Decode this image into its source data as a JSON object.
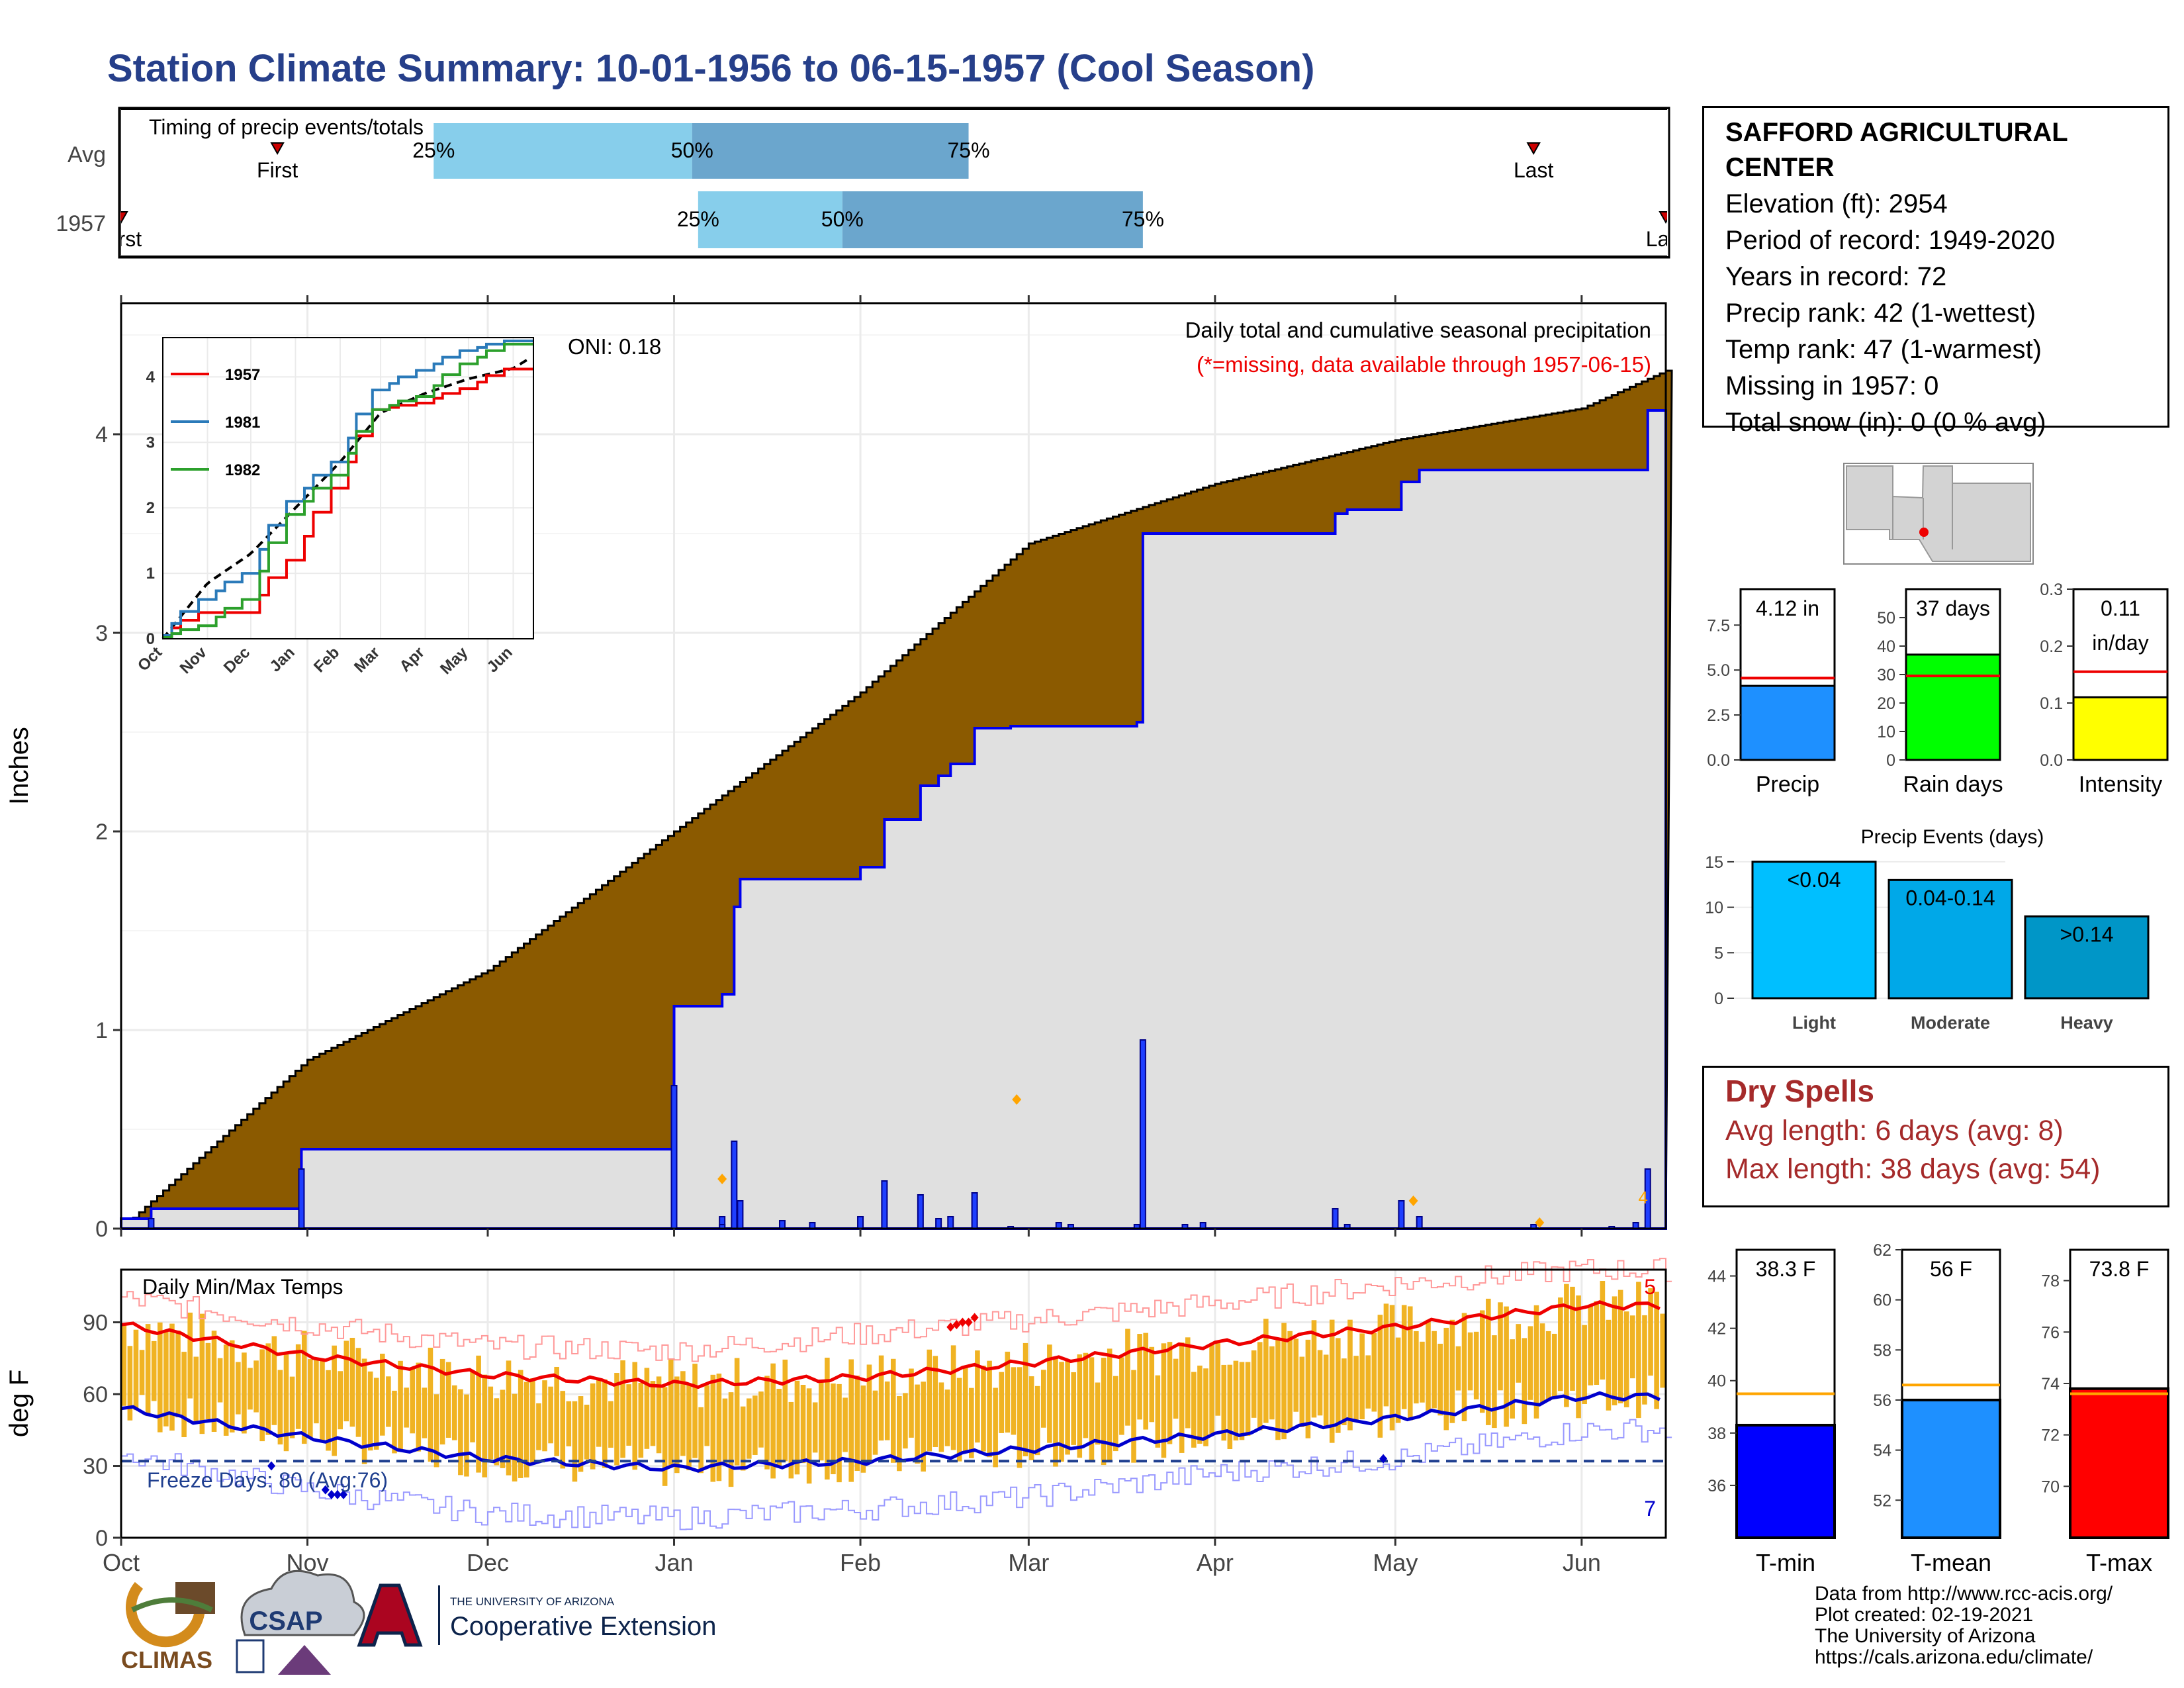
{
  "title": "Station Climate Summary: 10-01-1956 to 06-15-1957 (Cool Season)",
  "colors": {
    "title": "#263f8a",
    "precip_fill": "#8b5a00",
    "obs_fill": "#e0e0e0",
    "obs_line": "#0000ee",
    "temp_bar": "#f0b323",
    "tmax_line": "#ee0000",
    "tmin_line": "#0000cc"
  },
  "timing": {
    "label": "Timing of precip events/totals",
    "rows": [
      {
        "name": "Avg",
        "first_label": "First",
        "last_label": "Last",
        "first_day": 26,
        "last_day": 235,
        "p25_day": 52,
        "p50_day": 95,
        "p75_day": 141,
        "labels": [
          "25%",
          "50%",
          "75%"
        ]
      },
      {
        "name": "1957",
        "first_label": "First",
        "last_label": "Last",
        "first_day": 0,
        "last_day": 257,
        "p25_day": 96,
        "p50_day": 120,
        "p75_day": 170,
        "labels": [
          "25%",
          "50%",
          "75%"
        ]
      }
    ]
  },
  "main": {
    "ylabel": "Inches",
    "y_ticks": [
      "0",
      "1",
      "2",
      "3",
      "4"
    ],
    "x_ticks": [
      "Oct",
      "Nov",
      "Dec",
      "Jan",
      "Feb",
      "Mar",
      "Apr",
      "May",
      "Jun"
    ],
    "oni": "ONI: 0.18",
    "caption1": "Daily total and cumulative seasonal precipitation",
    "caption2": "(*=missing, data available through 1957-06-15)",
    "corner_marker": "4"
  },
  "inset": {
    "x_ticks": [
      "Oct",
      "Nov",
      "Dec",
      "Jan",
      "Feb",
      "Mar",
      "Apr",
      "May",
      "Jun"
    ],
    "y_ticks": [
      "0",
      "1",
      "2",
      "3",
      "4"
    ],
    "legend": [
      {
        "name": "1957",
        "color": "#ee0000"
      },
      {
        "name": "1981",
        "color": "#2a7ab9"
      },
      {
        "name": "1982",
        "color": "#2ca02c"
      }
    ]
  },
  "temps": {
    "label": "Daily Min/Max Temps",
    "ylabel": "deg F",
    "y_ticks": [
      "0",
      "30",
      "60",
      "90"
    ],
    "x_ticks": [
      "Oct",
      "Nov",
      "Dec",
      "Jan",
      "Feb",
      "Mar",
      "Apr",
      "May",
      "Jun"
    ],
    "freeze_text": "Freeze Days: 80 (Avg:76)",
    "top_count": "5",
    "bottom_count": "7"
  },
  "station": {
    "name_line1": "SAFFORD AGRICULTURAL",
    "name_line2": "CENTER",
    "lines": [
      "Elevation (ft): 2954",
      "Period of record: 1949-2020",
      "Years in record: 72",
      "Precip rank: 42 (1-wettest)",
      "Temp rank: 47 (1-warmest)",
      "Missing in 1957: 0",
      "Total snow (in): 0 (0 % avg)"
    ]
  },
  "mini_bars": {
    "precip": {
      "label": "Precip",
      "value_label": "4.12 in",
      "value": 4.12,
      "avg": 4.55,
      "ymax": 9.5,
      "ticks": [
        "0.0",
        "2.5",
        "5.0",
        "7.5"
      ],
      "color": "#1e90ff"
    },
    "rain_days": {
      "label": "Rain days",
      "value_label": "37 days",
      "value": 37,
      "avg": 29.5,
      "ymax": 60,
      "ticks": [
        "0",
        "10",
        "20",
        "30",
        "40",
        "50"
      ],
      "color": "#00ff00"
    },
    "intensity": {
      "label": "Intensity",
      "value_label": "0.11",
      "value_label2": "in/day",
      "value": 0.11,
      "avg": 0.155,
      "ymax": 0.3,
      "ticks": [
        "0.0",
        "0.1",
        "0.2",
        "0.3"
      ],
      "color": "#ffff00"
    }
  },
  "precip_events": {
    "title": "Precip Events (days)",
    "ticks": [
      "0",
      "5",
      "10",
      "15"
    ],
    "bars": [
      {
        "category": "Light",
        "label": "<0.04",
        "value": 15,
        "color": "#00bfff"
      },
      {
        "category": "Moderate",
        "label": "0.04-0.14",
        "value": 13,
        "color": "#00a8e8"
      },
      {
        "category": "Heavy",
        "label": ">0.14",
        "value": 9,
        "color": "#0096c7"
      }
    ]
  },
  "dry_spells": {
    "title": "Dry Spells",
    "avg_line": "Avg length: 6 days (avg: 8)",
    "max_line": "Max length: 38 days (avg: 54)"
  },
  "temp_bars": {
    "tmin": {
      "label": "T-min",
      "value_label": "38.3 F",
      "value": 38.3,
      "avg": 39.5,
      "ymin": 34,
      "ymax": 45,
      "ticks": [
        "36",
        "38",
        "40",
        "42",
        "44"
      ],
      "color": "#0000ff"
    },
    "tmean": {
      "label": "T-mean",
      "value_label": "56 F",
      "value": 56,
      "avg": 56.6,
      "ymin": 50.5,
      "ymax": 62,
      "ticks": [
        "52",
        "54",
        "56",
        "58",
        "60",
        "62"
      ],
      "color": "#1e90ff"
    },
    "tmax": {
      "label": "T-max",
      "value_label": "73.8 F",
      "value": 73.8,
      "avg": 73.6,
      "ymin": 68,
      "ymax": 79.2,
      "ticks": [
        "70",
        "72",
        "74",
        "76",
        "78"
      ],
      "color": "#ff0000"
    }
  },
  "credits": [
    "Data from http://www.rcc-acis.org/",
    "Plot created: 02-19-2021",
    "The University of Arizona",
    "https://cals.arizona.edu/climate/"
  ],
  "logos": {
    "climas": "CLIMAS",
    "csap": "CSAP",
    "ua_small": "THE UNIVERSITY OF ARIZONA",
    "coop": "Cooperative Extension"
  },
  "chart_data": [
    {
      "type": "area",
      "title": "Daily total and cumulative seasonal precipitation",
      "ylabel": "Inches",
      "ylim": [
        0,
        4.65
      ],
      "x_range": [
        "1956-10-01",
        "1957-06-15"
      ],
      "series": [
        {
          "name": "Avg",
          "x": [
            "1956-10-01",
            "1956-11-01",
            "1956-12-01",
            "1957-01-01",
            "1957-02-01",
            "1957-03-01",
            "1957-04-01",
            "1957-05-01",
            "1957-06-01",
            "1957-06-15"
          ],
          "values": [
            0,
            0.85,
            1.3,
            2.0,
            2.7,
            3.45,
            3.75,
            3.97,
            4.13,
            4.32
          ]
        },
        {
          "name": "1957",
          "x": [
            "1956-10-01",
            "1956-10-06",
            "1956-10-30",
            "1956-10-31",
            "1956-12-31",
            "1957-01-01",
            "1957-01-09",
            "1957-01-11",
            "1957-01-12",
            "1957-02-01",
            "1957-02-05",
            "1957-02-11",
            "1957-02-14",
            "1957-02-16",
            "1957-02-20",
            "1957-02-26",
            "1957-03-19",
            "1957-03-20",
            "1957-04-21",
            "1957-04-23",
            "1957-05-02",
            "1957-05-05",
            "1957-06-12",
            "1957-06-15"
          ],
          "values": [
            0.05,
            0.1,
            0.1,
            0.4,
            0.4,
            1.12,
            1.18,
            1.62,
            1.76,
            1.82,
            2.06,
            2.23,
            2.28,
            2.34,
            2.52,
            2.53,
            2.55,
            3.5,
            3.6,
            3.62,
            3.76,
            3.82,
            4.12,
            4.12
          ]
        }
      ]
    },
    {
      "type": "line",
      "title": "",
      "xlim": [
        "Oct",
        "Jun"
      ],
      "ylim": [
        0,
        4.6
      ],
      "legend": "top-left",
      "series": [
        {
          "name": "1957",
          "x": [
            "Oct",
            "Nov",
            "Dec",
            "Jan",
            "Feb",
            "Mar",
            "Apr",
            "May",
            "Jun"
          ],
          "values": [
            0.05,
            0.4,
            0.4,
            1.2,
            2.3,
            3.5,
            3.6,
            3.82,
            4.12
          ]
        },
        {
          "name": "1981",
          "x": [
            "Oct",
            "Nov",
            "Dec",
            "Jan",
            "Feb",
            "Mar",
            "Apr",
            "May",
            "Jun"
          ],
          "values": [
            0.05,
            0.6,
            1.0,
            2.1,
            2.7,
            3.8,
            4.1,
            4.4,
            4.55
          ]
        },
        {
          "name": "1982",
          "x": [
            "Oct",
            "Nov",
            "Dec",
            "Jan",
            "Feb",
            "Mar",
            "Apr",
            "May",
            "Jun"
          ],
          "values": [
            0.02,
            0.2,
            0.6,
            1.9,
            2.5,
            3.5,
            3.7,
            4.2,
            4.5
          ]
        }
      ]
    },
    {
      "type": "bar",
      "title": "Daily Min/Max Temps",
      "ylabel": "deg F",
      "ylim": [
        0,
        112
      ],
      "x": [
        "Oct",
        "Nov",
        "Dec",
        "Jan",
        "Feb",
        "Mar",
        "Apr",
        "May",
        "Jun"
      ],
      "series": [
        {
          "name": "Avg max",
          "values": [
            89,
            76,
            68,
            64,
            67,
            73,
            81,
            88,
            97
          ]
        },
        {
          "name": "Avg min",
          "values": [
            54,
            42,
            33,
            29,
            32,
            37,
            43,
            50,
            59
          ]
        },
        {
          "name": "Record max",
          "values": [
            100,
            89,
            80,
            78,
            85,
            91,
            98,
            106,
            112
          ]
        },
        {
          "name": "Record min",
          "values": [
            35,
            20,
            10,
            8,
            12,
            17,
            27,
            33,
            45
          ]
        }
      ],
      "freeze_threshold": 32
    }
  ]
}
